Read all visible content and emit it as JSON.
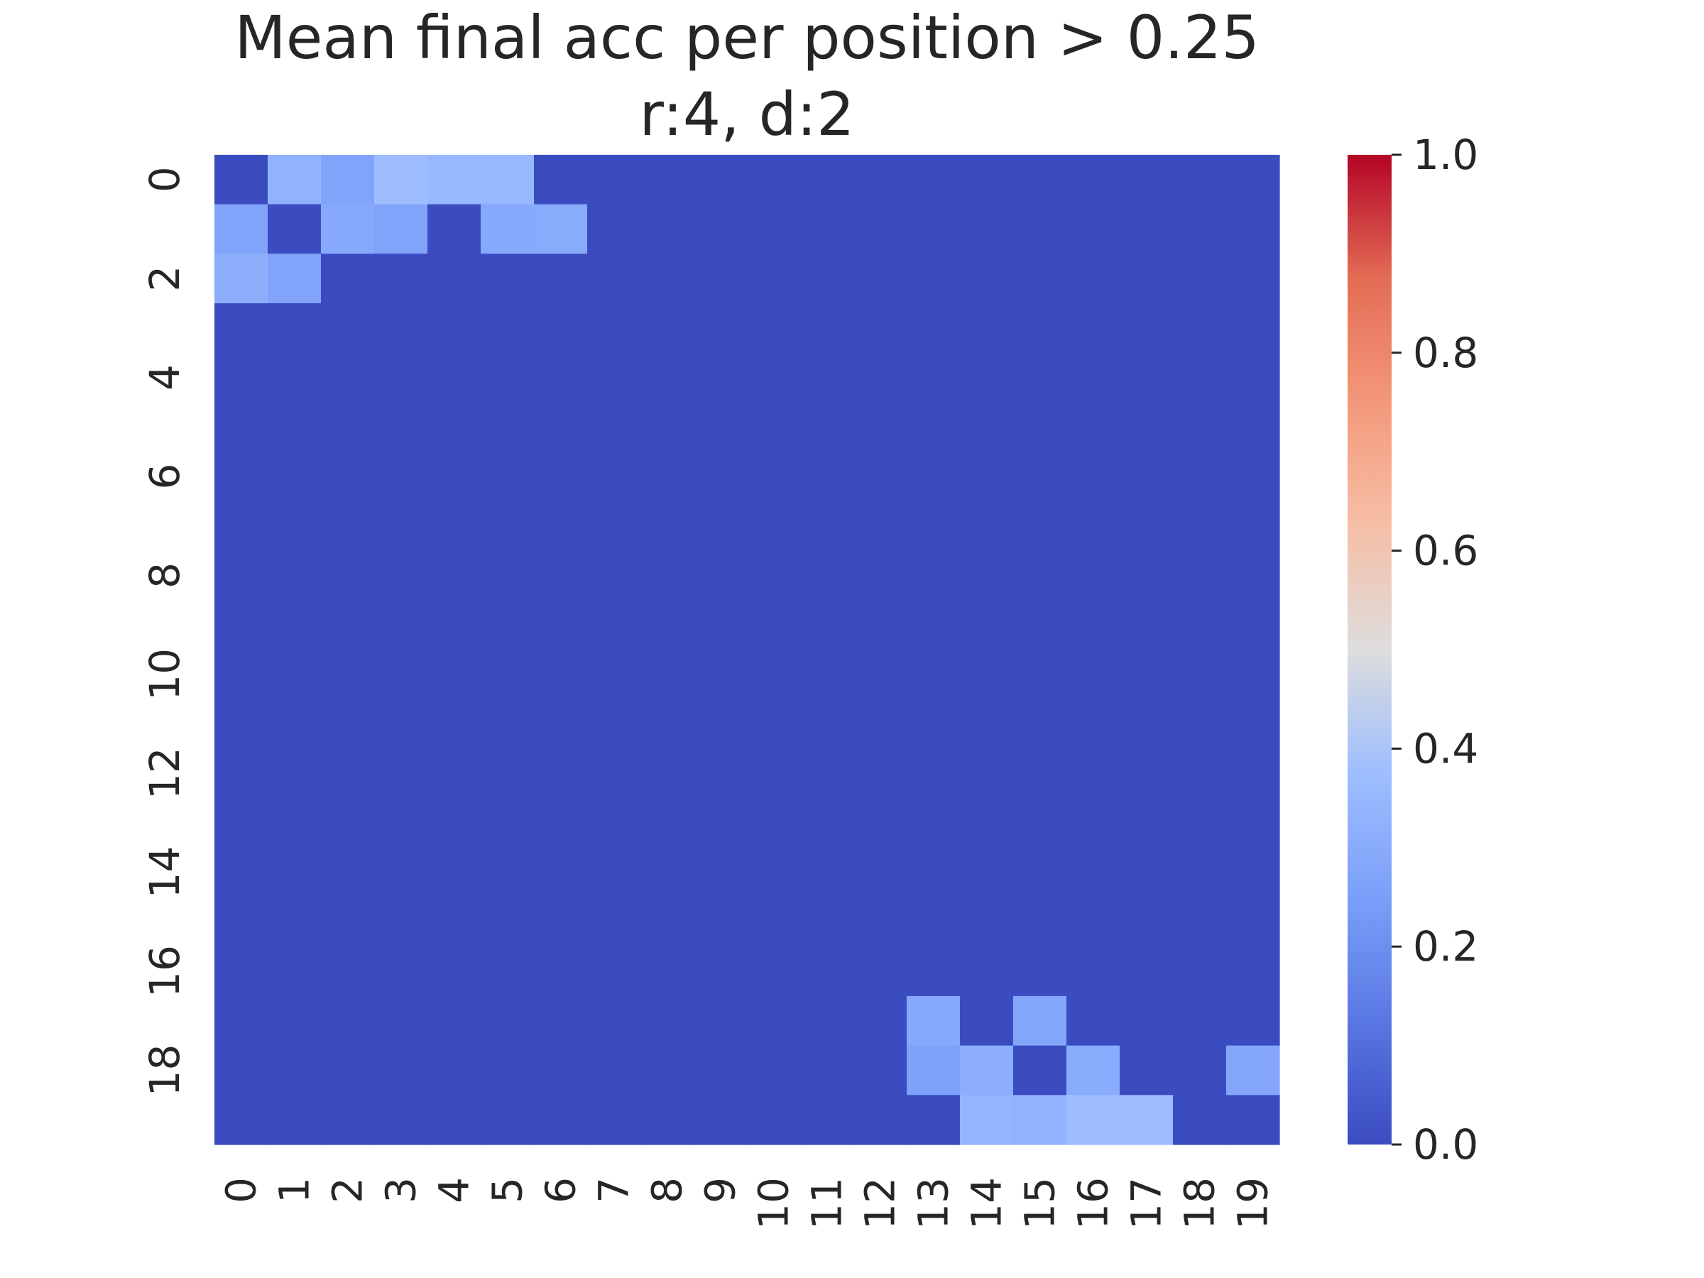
{
  "chart_data": {
    "type": "heatmap",
    "title": "Mean final acc per position > 0.25",
    "subtitle": "r:4, d:2",
    "xlabel": "",
    "ylabel": "",
    "x_labels": [
      "0",
      "1",
      "2",
      "3",
      "4",
      "5",
      "6",
      "7",
      "8",
      "9",
      "10",
      "11",
      "12",
      "13",
      "14",
      "15",
      "16",
      "17",
      "18",
      "19"
    ],
    "y_labels": [
      "0",
      "1",
      "2",
      "3",
      "4",
      "5",
      "6",
      "7",
      "8",
      "9",
      "10",
      "11",
      "12",
      "13",
      "14",
      "15",
      "16",
      "17",
      "18",
      "19"
    ],
    "y_tick_labels_shown": [
      "0",
      "2",
      "4",
      "6",
      "8",
      "10",
      "12",
      "14",
      "16",
      "18"
    ],
    "colormap": "coolwarm",
    "vmin": 0.0,
    "vmax": 1.0,
    "colorbar_ticks": [
      "0.0",
      "0.2",
      "0.4",
      "0.6",
      "0.8",
      "1.0"
    ],
    "values": [
      [
        0.0,
        0.33,
        0.27,
        0.37,
        0.35,
        0.35,
        0.0,
        0.0,
        0.0,
        0.0,
        0.0,
        0.0,
        0.0,
        0.0,
        0.0,
        0.0,
        0.0,
        0.0,
        0.0,
        0.0
      ],
      [
        0.27,
        0.0,
        0.29,
        0.27,
        0.0,
        0.29,
        0.3,
        0.0,
        0.0,
        0.0,
        0.0,
        0.0,
        0.0,
        0.0,
        0.0,
        0.0,
        0.0,
        0.0,
        0.0,
        0.0
      ],
      [
        0.31,
        0.27,
        0.0,
        0.0,
        0.0,
        0.0,
        0.0,
        0.0,
        0.0,
        0.0,
        0.0,
        0.0,
        0.0,
        0.0,
        0.0,
        0.0,
        0.0,
        0.0,
        0.0,
        0.0
      ],
      [
        0.0,
        0.0,
        0.0,
        0.0,
        0.0,
        0.0,
        0.0,
        0.0,
        0.0,
        0.0,
        0.0,
        0.0,
        0.0,
        0.0,
        0.0,
        0.0,
        0.0,
        0.0,
        0.0,
        0.0
      ],
      [
        0.0,
        0.0,
        0.0,
        0.0,
        0.0,
        0.0,
        0.0,
        0.0,
        0.0,
        0.0,
        0.0,
        0.0,
        0.0,
        0.0,
        0.0,
        0.0,
        0.0,
        0.0,
        0.0,
        0.0
      ],
      [
        0.0,
        0.0,
        0.0,
        0.0,
        0.0,
        0.0,
        0.0,
        0.0,
        0.0,
        0.0,
        0.0,
        0.0,
        0.0,
        0.0,
        0.0,
        0.0,
        0.0,
        0.0,
        0.0,
        0.0
      ],
      [
        0.0,
        0.0,
        0.0,
        0.0,
        0.0,
        0.0,
        0.0,
        0.0,
        0.0,
        0.0,
        0.0,
        0.0,
        0.0,
        0.0,
        0.0,
        0.0,
        0.0,
        0.0,
        0.0,
        0.0
      ],
      [
        0.0,
        0.0,
        0.0,
        0.0,
        0.0,
        0.0,
        0.0,
        0.0,
        0.0,
        0.0,
        0.0,
        0.0,
        0.0,
        0.0,
        0.0,
        0.0,
        0.0,
        0.0,
        0.0,
        0.0
      ],
      [
        0.0,
        0.0,
        0.0,
        0.0,
        0.0,
        0.0,
        0.0,
        0.0,
        0.0,
        0.0,
        0.0,
        0.0,
        0.0,
        0.0,
        0.0,
        0.0,
        0.0,
        0.0,
        0.0,
        0.0
      ],
      [
        0.0,
        0.0,
        0.0,
        0.0,
        0.0,
        0.0,
        0.0,
        0.0,
        0.0,
        0.0,
        0.0,
        0.0,
        0.0,
        0.0,
        0.0,
        0.0,
        0.0,
        0.0,
        0.0,
        0.0
      ],
      [
        0.0,
        0.0,
        0.0,
        0.0,
        0.0,
        0.0,
        0.0,
        0.0,
        0.0,
        0.0,
        0.0,
        0.0,
        0.0,
        0.0,
        0.0,
        0.0,
        0.0,
        0.0,
        0.0,
        0.0
      ],
      [
        0.0,
        0.0,
        0.0,
        0.0,
        0.0,
        0.0,
        0.0,
        0.0,
        0.0,
        0.0,
        0.0,
        0.0,
        0.0,
        0.0,
        0.0,
        0.0,
        0.0,
        0.0,
        0.0,
        0.0
      ],
      [
        0.0,
        0.0,
        0.0,
        0.0,
        0.0,
        0.0,
        0.0,
        0.0,
        0.0,
        0.0,
        0.0,
        0.0,
        0.0,
        0.0,
        0.0,
        0.0,
        0.0,
        0.0,
        0.0,
        0.0
      ],
      [
        0.0,
        0.0,
        0.0,
        0.0,
        0.0,
        0.0,
        0.0,
        0.0,
        0.0,
        0.0,
        0.0,
        0.0,
        0.0,
        0.0,
        0.0,
        0.0,
        0.0,
        0.0,
        0.0,
        0.0
      ],
      [
        0.0,
        0.0,
        0.0,
        0.0,
        0.0,
        0.0,
        0.0,
        0.0,
        0.0,
        0.0,
        0.0,
        0.0,
        0.0,
        0.0,
        0.0,
        0.0,
        0.0,
        0.0,
        0.0,
        0.0
      ],
      [
        0.0,
        0.0,
        0.0,
        0.0,
        0.0,
        0.0,
        0.0,
        0.0,
        0.0,
        0.0,
        0.0,
        0.0,
        0.0,
        0.0,
        0.0,
        0.0,
        0.0,
        0.0,
        0.0,
        0.0
      ],
      [
        0.0,
        0.0,
        0.0,
        0.0,
        0.0,
        0.0,
        0.0,
        0.0,
        0.0,
        0.0,
        0.0,
        0.0,
        0.0,
        0.0,
        0.0,
        0.0,
        0.0,
        0.0,
        0.0,
        0.0
      ],
      [
        0.0,
        0.0,
        0.0,
        0.0,
        0.0,
        0.0,
        0.0,
        0.0,
        0.0,
        0.0,
        0.0,
        0.0,
        0.0,
        0.29,
        0.0,
        0.28,
        0.0,
        0.0,
        0.0,
        0.0
      ],
      [
        0.0,
        0.0,
        0.0,
        0.0,
        0.0,
        0.0,
        0.0,
        0.0,
        0.0,
        0.0,
        0.0,
        0.0,
        0.0,
        0.26,
        0.31,
        0.0,
        0.3,
        0.0,
        0.0,
        0.28
      ],
      [
        0.0,
        0.0,
        0.0,
        0.0,
        0.0,
        0.0,
        0.0,
        0.0,
        0.0,
        0.0,
        0.0,
        0.0,
        0.0,
        0.0,
        0.34,
        0.33,
        0.37,
        0.37,
        0.0,
        0.0
      ]
    ]
  }
}
